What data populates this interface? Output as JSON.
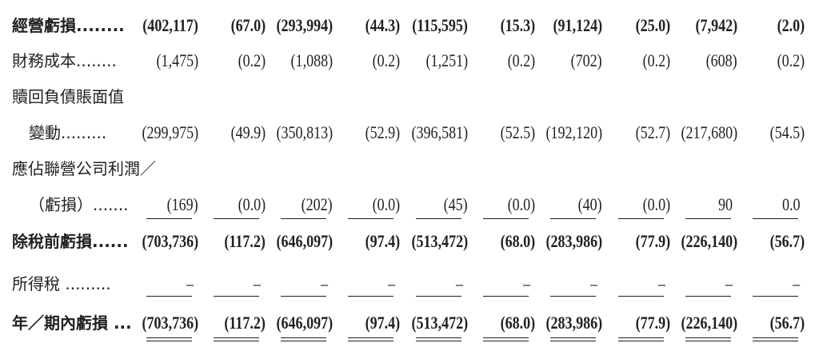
{
  "rows": [
    {
      "label": "經營虧損........",
      "bold": true,
      "indent": false,
      "values": [
        "(402,117)",
        "(67.0)",
        "(293,994)",
        "(44.3)",
        "(115,595)",
        "(15.3)",
        "(91,124)",
        "(25.0)",
        "(7,942)",
        "(2.0)"
      ]
    },
    {
      "label": "財務成本........",
      "bold": false,
      "indent": false,
      "values": [
        "(1,475)",
        "(0.2)",
        "(1,088)",
        "(0.2)",
        "(1,251)",
        "(0.2)",
        "(702)",
        "(0.2)",
        "(608)",
        "(0.2)"
      ]
    },
    {
      "label": "贖回負債賬面值",
      "bold": false,
      "indent": false,
      "values": []
    },
    {
      "label": "變動.........",
      "bold": false,
      "indent": true,
      "values": [
        "(299,975)",
        "(49.9)",
        "(350,813)",
        "(52.9)",
        "(396,581)",
        "(52.5)",
        "(192,120)",
        "(52.7)",
        "(217,680)",
        "(54.5)"
      ]
    },
    {
      "label": "應佔聯營公司利潤／",
      "bold": false,
      "indent": false,
      "values": []
    },
    {
      "label": "（虧損）.......",
      "bold": false,
      "indent": true,
      "values": [
        "(169)",
        "(0.0)",
        "(202)",
        "(0.0)",
        "(45)",
        "(0.0)",
        "(40)",
        "(0.0)",
        "90",
        "0.0"
      ]
    },
    {
      "label": "除稅前虧損......",
      "bold": true,
      "indent": false,
      "values": [
        "(703,736)",
        "(117.2)",
        "(646,097)",
        "(97.4)",
        "(513,472)",
        "(68.0)",
        "(283,986)",
        "(77.9)",
        "(226,140)",
        "(56.7)"
      ]
    },
    {
      "label": "所得稅 .........",
      "bold": false,
      "indent": false,
      "values": [
        "–",
        "–",
        "–",
        "–",
        "–",
        "–",
        "–",
        "–",
        "–",
        "–"
      ]
    },
    {
      "label": "年／期內虧損 ...",
      "bold": true,
      "indent": false,
      "values": [
        "(703,736)",
        "(117.2)",
        "(646,097)",
        "(97.4)",
        "(513,472)",
        "(68.0)",
        "(283,986)",
        "(77.9)",
        "(226,140)",
        "(56.7)"
      ]
    }
  ]
}
